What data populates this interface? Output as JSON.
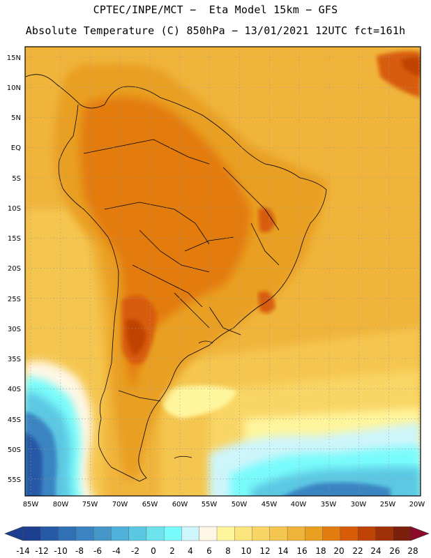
{
  "header": {
    "line1": "CPTEC/INPE/MCT −  Eta Model 15km − GFS",
    "line2": "Absolute Temperature (C) 850hPa − 13/01/2021 12UTC fct=161h"
  },
  "map": {
    "lat_labels": [
      "15N",
      "10N",
      "5N",
      "EQ",
      "5S",
      "10S",
      "15S",
      "20S",
      "25S",
      "30S",
      "35S",
      "40S",
      "45S",
      "50S",
      "55S"
    ],
    "lon_labels": [
      "85W",
      "80W",
      "75W",
      "70W",
      "65W",
      "60W",
      "55W",
      "50W",
      "45W",
      "40W",
      "35W",
      "30W",
      "25W",
      "20W"
    ]
  },
  "legend": {
    "labels": [
      "-14",
      "-12",
      "-10",
      "-8",
      "-6",
      "-4",
      "-2",
      "0",
      "2",
      "4",
      "6",
      "8",
      "10",
      "12",
      "14",
      "16",
      "18",
      "20",
      "22",
      "24",
      "26",
      "28"
    ],
    "colors": [
      "#1d3f8f",
      "#2659a6",
      "#3070b5",
      "#3a84c2",
      "#4597c9",
      "#4fb0d9",
      "#5bc8e3",
      "#6ee3ee",
      "#79fbfb",
      "#cdf5fb",
      "#fff7e5",
      "#fff59d",
      "#fde57d",
      "#f9d565",
      "#f5c64f",
      "#f0b43b",
      "#e99f20",
      "#e37c0f",
      "#d85c08",
      "#c04306",
      "#a03006",
      "#7c1f0c"
    ],
    "under_color": "#1d3f8f",
    "over_color": "#8c0a2a"
  }
}
